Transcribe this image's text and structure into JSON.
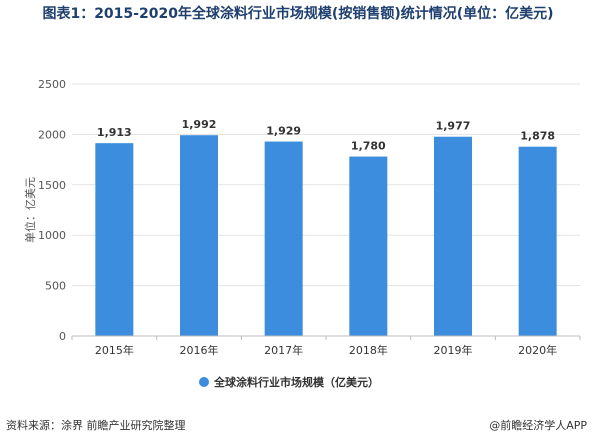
{
  "chart_data": {
    "type": "bar",
    "title": "图表1：2015-2020年全球涂料行业市场规模(按销售额)统计情况(单位：亿美元)",
    "categories": [
      "2015年",
      "2016年",
      "2017年",
      "2018年",
      "2019年",
      "2020年"
    ],
    "series": [
      {
        "name": "全球涂料行业市场规模（亿美元）",
        "values": [
          1913,
          1992,
          1929,
          1780,
          1977,
          1878
        ]
      }
    ],
    "value_labels": [
      "1,913",
      "1,992",
      "1,929",
      "1,780",
      "1,977",
      "1,878"
    ],
    "ylabel": "单位：亿美元",
    "ylim": [
      0,
      2500
    ],
    "yticks": [
      "0",
      "500",
      "1000",
      "1500",
      "2000",
      "2500"
    ],
    "grid": true,
    "legend_position": "bottom",
    "bar_color": "#3c8ddd"
  },
  "footer": {
    "source": "资料来源：涂界 前瞻产业研究院整理",
    "brand": "@前瞻经济学人APP"
  }
}
